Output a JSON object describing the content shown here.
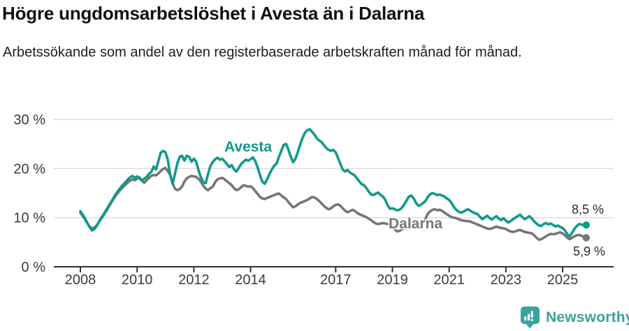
{
  "title": "Högre ungdomsarbetslöshet i Avesta än i Dalarna",
  "subtitle": "Arbetssökande som andel av den registerbaserade arbetskraften månad för månad.",
  "footer": {
    "brand": "Newsworthy",
    "logo_icon": "bar-chart-speech-bubble"
  },
  "colors": {
    "avesta": "#13998b",
    "dalarna": "#767676",
    "grid": "#dcdcdc",
    "axis": "#2f2f2f",
    "tick_text": "#3a3a3a",
    "brand": "#3aa39b"
  },
  "chart_data": {
    "type": "line",
    "title": "Högre ungdomsarbetslöshet i Avesta än i Dalarna",
    "subtitle": "Arbetssökande som andel av den registerbaserade arbetskraften månad för månad.",
    "frequency": "monthly",
    "x_start": "2008-01",
    "x_end": "2025-11",
    "ylim": [
      0,
      30
    ],
    "grid": "horizontal",
    "y_ticks": [
      {
        "label": "0 %",
        "value": 0
      },
      {
        "label": "10 %",
        "value": 10
      },
      {
        "label": "20 %",
        "value": 20
      },
      {
        "label": "30 %",
        "value": 30
      }
    ],
    "x_ticks": [
      {
        "label": "2008",
        "year": 2008
      },
      {
        "label": "2010",
        "year": 2010
      },
      {
        "label": "2012",
        "year": 2012
      },
      {
        "label": "2014",
        "year": 2014
      },
      {
        "label": "2017",
        "year": 2017
      },
      {
        "label": "2019",
        "year": 2019
      },
      {
        "label": "2021",
        "year": 2021
      },
      {
        "label": "2023",
        "year": 2023
      },
      {
        "label": "2025",
        "year": 2025
      }
    ],
    "series": [
      {
        "name": "Avesta",
        "color": "#13998b",
        "end_label": "8,5 %",
        "end_value": 8.5,
        "values": [
          11.3,
          10.6,
          9.8,
          8.9,
          8.0,
          7.4,
          7.7,
          8.4,
          9.3,
          10.1,
          10.8,
          11.6,
          12.4,
          13.2,
          14.0,
          14.8,
          15.5,
          16.1,
          16.7,
          17.2,
          17.7,
          18.2,
          18.5,
          18.1,
          18.4,
          18.0,
          17.6,
          17.9,
          18.3,
          18.9,
          19.3,
          20.4,
          19.8,
          21.5,
          23.2,
          23.6,
          23.3,
          21.8,
          18.7,
          16.9,
          18.9,
          21.0,
          22.4,
          22.6,
          21.6,
          22.6,
          22.4,
          21.4,
          22.0,
          21.4,
          19.6,
          18.2,
          17.2,
          17.0,
          18.8,
          20.5,
          21.3,
          21.9,
          22.2,
          21.8,
          22.0,
          21.5,
          20.9,
          20.3,
          20.7,
          19.8,
          19.4,
          20.1,
          20.9,
          21.4,
          21.8,
          21.6,
          21.9,
          22.3,
          21.5,
          20.2,
          18.6,
          17.3,
          16.9,
          17.8,
          18.9,
          19.8,
          20.6,
          21.0,
          22.4,
          23.6,
          24.8,
          25.0,
          23.9,
          22.4,
          21.3,
          22.0,
          23.4,
          24.9,
          26.2,
          27.3,
          27.8,
          28.0,
          27.5,
          26.9,
          26.2,
          25.7,
          25.4,
          24.8,
          24.2,
          23.8,
          23.6,
          23.8,
          23.3,
          22.1,
          20.9,
          19.8,
          19.4,
          19.7,
          19.2,
          18.9,
          18.6,
          18.0,
          17.4,
          16.8,
          16.6,
          16.0,
          15.3,
          14.7,
          14.6,
          14.9,
          15.1,
          14.6,
          14.3,
          13.6,
          12.5,
          11.8,
          11.9,
          11.7,
          11.5,
          11.6,
          12.0,
          12.7,
          13.5,
          14.3,
          14.5,
          13.9,
          13.0,
          12.4,
          12.6,
          13.0,
          13.4,
          14.2,
          14.8,
          15.0,
          14.8,
          14.6,
          14.7,
          14.5,
          14.3,
          13.9,
          13.6,
          13.0,
          12.2,
          11.6,
          11.2,
          11.0,
          11.2,
          11.5,
          11.7,
          11.4,
          11.1,
          10.9,
          10.7,
          10.2,
          9.7,
          10.0,
          10.4,
          10.0,
          9.6,
          10.0,
          10.3,
          9.8,
          9.5,
          9.9,
          9.4,
          9.0,
          9.3,
          9.7,
          10.0,
          10.3,
          10.6,
          10.1,
          9.7,
          10.0,
          10.3,
          9.8,
          9.2,
          8.8,
          8.4,
          8.3,
          8.7,
          8.9,
          8.6,
          8.8,
          8.5,
          8.2,
          8.4,
          8.1,
          7.9,
          7.4,
          6.6,
          6.2,
          6.9,
          7.7,
          8.3,
          8.7,
          8.6,
          8.4,
          8.5
        ]
      },
      {
        "name": "Dalarna",
        "color": "#767676",
        "end_label": "5,9 %",
        "end_value": 5.9,
        "values": [
          11.0,
          10.3,
          9.6,
          8.8,
          8.1,
          7.8,
          8.0,
          8.5,
          9.2,
          9.9,
          10.6,
          11.4,
          12.2,
          13.0,
          13.8,
          14.5,
          15.1,
          15.7,
          16.2,
          16.7,
          17.1,
          17.5,
          17.8,
          17.6,
          17.9,
          18.2,
          17.5,
          17.1,
          17.6,
          18.1,
          18.5,
          18.7,
          18.6,
          19.0,
          19.5,
          19.9,
          20.1,
          19.5,
          18.7,
          17.0,
          15.9,
          15.6,
          15.8,
          16.3,
          17.3,
          18.0,
          18.3,
          18.5,
          18.4,
          18.3,
          17.9,
          17.3,
          16.5,
          15.9,
          15.6,
          16.0,
          16.3,
          17.2,
          17.8,
          18.0,
          18.1,
          17.8,
          17.4,
          17.0,
          16.6,
          16.0,
          15.6,
          15.8,
          16.2,
          16.6,
          16.5,
          16.3,
          16.4,
          16.0,
          15.4,
          14.8,
          14.2,
          13.9,
          13.8,
          14.0,
          14.2,
          14.4,
          14.6,
          14.8,
          14.9,
          14.5,
          14.1,
          13.8,
          13.2,
          12.6,
          12.1,
          12.3,
          12.7,
          13.0,
          13.2,
          13.4,
          13.6,
          13.9,
          14.2,
          14.1,
          13.8,
          13.4,
          12.9,
          12.4,
          12.0,
          11.7,
          11.9,
          12.3,
          12.6,
          12.7,
          12.4,
          11.9,
          11.4,
          11.1,
          11.3,
          11.6,
          11.4,
          11.0,
          10.7,
          10.5,
          10.3,
          10.1,
          9.8,
          9.5,
          9.1,
          8.8,
          8.7,
          8.8,
          8.9,
          8.8,
          8.7,
          8.6,
          8.2,
          7.6,
          7.2,
          7.3,
          7.6,
          7.9,
          8.2,
          8.4,
          8.3,
          8.1,
          8.3,
          8.5,
          8.7,
          9.0,
          9.8,
          10.8,
          11.3,
          11.6,
          11.7,
          11.5,
          11.6,
          11.4,
          11.0,
          10.7,
          10.4,
          10.1,
          10.0,
          9.9,
          9.7,
          9.5,
          9.4,
          9.3,
          9.3,
          9.2,
          9.0,
          8.8,
          8.6,
          8.4,
          8.2,
          8.0,
          7.8,
          7.7,
          7.8,
          8.0,
          8.2,
          8.0,
          7.9,
          7.8,
          7.7,
          7.4,
          7.2,
          7.1,
          7.2,
          7.4,
          7.5,
          7.3,
          7.1,
          7.0,
          6.9,
          6.8,
          6.4,
          5.9,
          5.5,
          5.6,
          5.9,
          6.2,
          6.5,
          6.7,
          6.6,
          6.7,
          6.9,
          7.0,
          6.8,
          6.4,
          5.9,
          5.6,
          5.9,
          6.2,
          6.4,
          6.5,
          6.3,
          6.1,
          5.9
        ]
      }
    ]
  }
}
